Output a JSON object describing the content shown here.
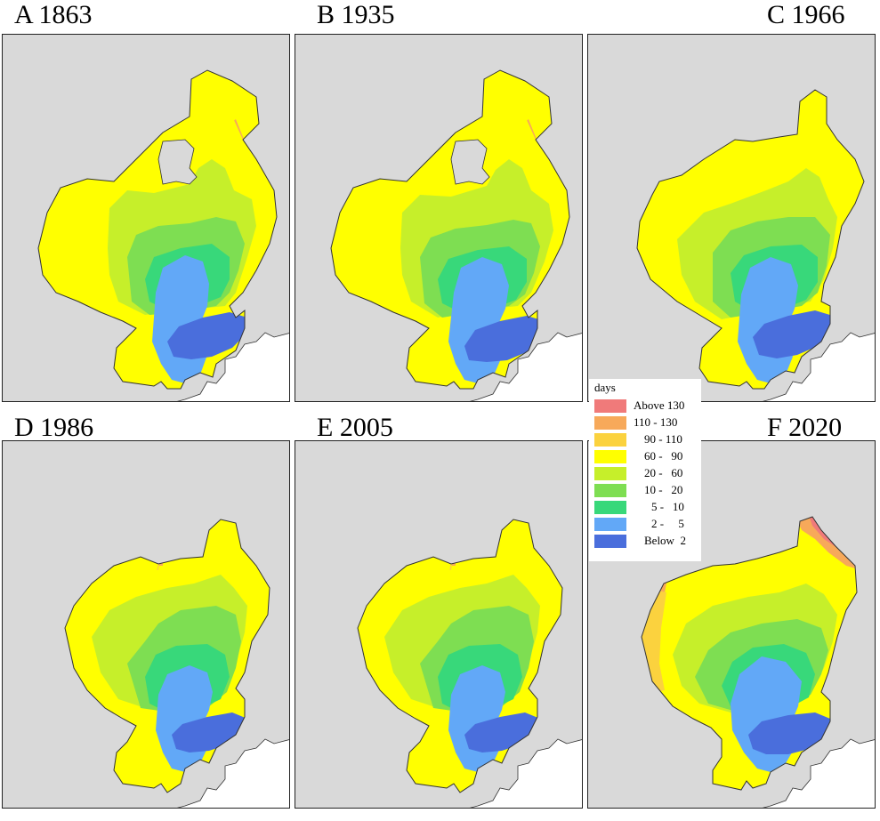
{
  "panels": [
    {
      "title": "A 1863"
    },
    {
      "title": "B 1935"
    },
    {
      "title": "C 1966"
    },
    {
      "title": "D 1986"
    },
    {
      "title": "E 2005"
    },
    {
      "title": "F 2020"
    }
  ],
  "legend": {
    "title": "days",
    "items": [
      {
        "label": "Above 130",
        "color": "#f07a7a"
      },
      {
        "label": "110 - 130",
        "color": "#f7a95a"
      },
      {
        "label": "90 - 110",
        "color": "#fbd23e"
      },
      {
        "label": "60 -   90",
        "color": "#ffff00"
      },
      {
        "label": "20 -   60",
        "color": "#c6ef2a"
      },
      {
        "label": "10 -   20",
        "color": "#7ede52"
      },
      {
        "label": "5 -   10",
        "color": "#38d87a"
      },
      {
        "label": "2 -     5",
        "color": "#62a8f7"
      },
      {
        "label": "Below  2",
        "color": "#4a6edc"
      }
    ]
  },
  "colors": {
    "land": "#d9d9d9",
    "sea": "#ffffff",
    "coast": "#333333"
  }
}
